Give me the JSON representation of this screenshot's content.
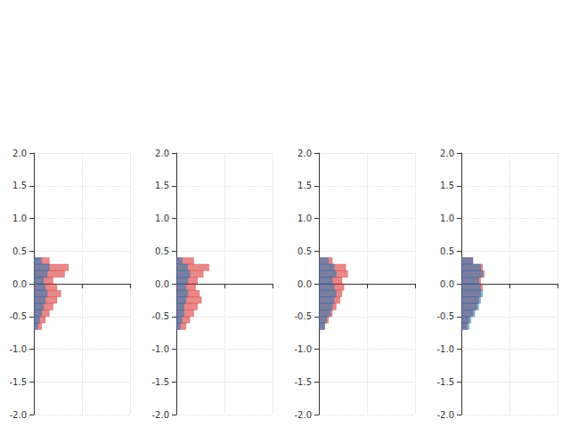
{
  "chart_data": [
    {
      "type": "histogram",
      "orientation": "horizontal",
      "grid": true,
      "tick_labels": "y",
      "bins": [
        -0.7,
        -0.6,
        -0.5,
        -0.4,
        -0.3,
        -0.2,
        -0.1,
        0.0,
        0.1,
        0.2,
        0.3,
        0.4
      ],
      "series": [
        {
          "color": "#d62728",
          "values": [
            4,
            6,
            8,
            10,
            12,
            14,
            12,
            10,
            16,
            18,
            8
          ]
        },
        {
          "color": "#1f77b4",
          "values": [
            2,
            3,
            4,
            5,
            6,
            7,
            6,
            5,
            7,
            8,
            4
          ]
        }
      ],
      "xlim": [
        0,
        50
      ],
      "xticks": [
        0,
        25,
        50
      ],
      "ylim": [
        -2.0,
        2.0
      ],
      "yticks": [
        {
          "value": -2.0,
          "label": "-2.0"
        },
        {
          "value": -1.5,
          "label": "-1.5"
        },
        {
          "value": -1.0,
          "label": "-1.0"
        },
        {
          "value": -0.5,
          "label": "-0.5"
        },
        {
          "value": 0.0,
          "label": "0.0"
        },
        0.5,
        {
          "value": 1.0,
          "label": "1.0"
        },
        1.5,
        {
          "value": 2.0,
          "label": "2.0"
        }
      ]
    },
    {
      "type": "histogram",
      "orientation": "horizontal",
      "grid": true,
      "tick_labels": "y",
      "bins": [
        -0.7,
        -0.6,
        -0.5,
        -0.4,
        -0.3,
        -0.2,
        -0.1,
        0.0,
        0.1,
        0.2,
        0.3,
        0.4
      ],
      "series": [
        {
          "color": "#d62728",
          "values": [
            5,
            7,
            9,
            11,
            13,
            12,
            10,
            11,
            14,
            17,
            9
          ]
        },
        {
          "color": "#1f77b4",
          "values": [
            2,
            3,
            4,
            4,
            5,
            6,
            5,
            6,
            7,
            6,
            3
          ]
        }
      ],
      "xlim": [
        0,
        50
      ],
      "xticks": [
        0,
        25,
        50
      ],
      "ylim": [
        -2.0,
        2.0
      ],
      "yticks": [
        {
          "value": -2.0,
          "label": "-2.0"
        },
        {
          "value": -1.5,
          "label": "-1.5"
        },
        {
          "value": -1.0,
          "label": "-1.0"
        },
        {
          "value": -0.5,
          "label": "-0.5"
        },
        {
          "value": 0.0,
          "label": "0.0"
        },
        0.5,
        {
          "value": 1.0,
          "label": "1.0"
        },
        1.5,
        {
          "value": 2.0,
          "label": "2.0"
        }
      ]
    },
    {
      "type": "histogram",
      "orientation": "horizontal",
      "grid": true,
      "tick_labels": "y",
      "bins": [
        -0.7,
        -0.6,
        -0.5,
        -0.4,
        -0.3,
        -0.2,
        -0.1,
        0.0,
        0.1,
        0.2,
        0.3,
        0.4
      ],
      "series": [
        {
          "color": "#d62728",
          "values": [
            3,
            5,
            7,
            9,
            11,
            12,
            13,
            12,
            15,
            14,
            7
          ]
        },
        {
          "color": "#1f77b4",
          "values": [
            3,
            4,
            6,
            7,
            8,
            9,
            8,
            7,
            9,
            8,
            5
          ]
        }
      ],
      "xlim": [
        0,
        50
      ],
      "xticks": [
        0,
        25,
        50
      ],
      "ylim": [
        -2.0,
        2.0
      ],
      "yticks": [
        {
          "value": -2.0,
          "label": "-2.0"
        },
        {
          "value": -1.5,
          "label": "-1.5"
        },
        {
          "value": -1.0,
          "label": "-1.0"
        },
        {
          "value": -0.5,
          "label": "-0.5"
        },
        {
          "value": 0.0,
          "label": "0.0"
        },
        0.5,
        {
          "value": 1.0,
          "label": "1.0"
        },
        1.5,
        {
          "value": 2.0,
          "label": "2.0"
        }
      ]
    },
    {
      "type": "histogram",
      "orientation": "horizontal",
      "grid": true,
      "tick_labels": "y",
      "bins": [
        -0.7,
        -0.6,
        -0.5,
        -0.4,
        -0.3,
        -0.2,
        -0.1,
        0.0,
        0.1,
        0.2,
        0.3,
        0.4
      ],
      "series": [
        {
          "color": "#d62728",
          "values": [
            3,
            4,
            6,
            8,
            9,
            10,
            11,
            10,
            12,
            11,
            6
          ]
        },
        {
          "color": "#1f77b4",
          "values": [
            4,
            5,
            7,
            9,
            10,
            11,
            10,
            9,
            11,
            10,
            6
          ]
        }
      ],
      "xlim": [
        0,
        50
      ],
      "xticks": [
        0,
        25,
        50
      ],
      "ylim": [
        -2.0,
        2.0
      ],
      "yticks": [
        {
          "value": -2.0,
          "label": "-2.0"
        },
        {
          "value": -1.5,
          "label": "-1.5"
        },
        {
          "value": -1.0,
          "label": "-1.0"
        },
        {
          "value": -0.5,
          "label": "-0.5"
        },
        {
          "value": 0.0,
          "label": "0.0"
        },
        0.5,
        {
          "value": 1.0,
          "label": "1.0"
        },
        1.5,
        {
          "value": 2.0,
          "label": "2.0"
        }
      ]
    }
  ]
}
